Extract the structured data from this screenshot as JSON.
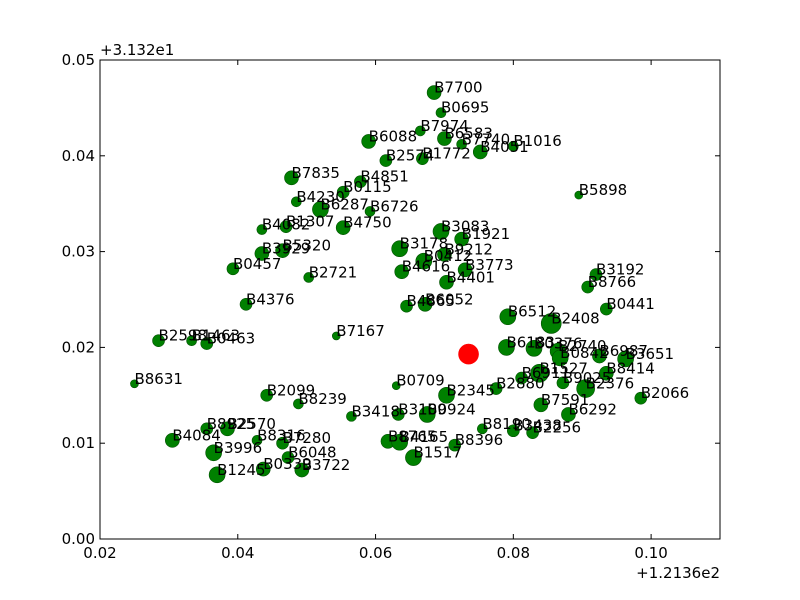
{
  "chart_data": {
    "type": "scatter",
    "title": "",
    "xlabel": "",
    "ylabel": "",
    "x_offset_label": "+1.2136e2",
    "y_offset_label": "+3.132e1",
    "xlim": [
      0.02,
      0.11
    ],
    "ylim": [
      0.0,
      0.05
    ],
    "x_ticks": [
      0.02,
      0.04,
      0.06,
      0.08,
      0.1
    ],
    "x_tick_labels": [
      "0.02",
      "0.04",
      "0.06",
      "0.08",
      "0.10"
    ],
    "y_ticks": [
      0.0,
      0.01,
      0.02,
      0.03,
      0.04,
      0.05
    ],
    "y_tick_labels": [
      "0.00",
      "0.01",
      "0.02",
      "0.03",
      "0.04",
      "0.05"
    ],
    "grid": false,
    "colors": {
      "point": "#008000",
      "point_edge": "#005000",
      "highlight": "#ff0000"
    },
    "highlight_point": {
      "x": 0.0735,
      "y": 0.0193,
      "size": 10
    },
    "points": [
      {
        "label": "B7700",
        "x": 0.0685,
        "y": 0.0466,
        "size": 7
      },
      {
        "label": "B0695",
        "x": 0.0695,
        "y": 0.0445,
        "size": 5
      },
      {
        "label": "B7974",
        "x": 0.0665,
        "y": 0.0426,
        "size": 5
      },
      {
        "label": "B6583",
        "x": 0.07,
        "y": 0.0418,
        "size": 7
      },
      {
        "label": "B7740",
        "x": 0.0725,
        "y": 0.0412,
        "size": 5
      },
      {
        "label": "B1016",
        "x": 0.08,
        "y": 0.041,
        "size": 5
      },
      {
        "label": "B4051",
        "x": 0.0752,
        "y": 0.0404,
        "size": 7
      },
      {
        "label": "B6088",
        "x": 0.059,
        "y": 0.0415,
        "size": 7
      },
      {
        "label": "B2574",
        "x": 0.0615,
        "y": 0.0395,
        "size": 6
      },
      {
        "label": "B1772",
        "x": 0.0668,
        "y": 0.0397,
        "size": 6
      },
      {
        "label": "B5898",
        "x": 0.0895,
        "y": 0.0359,
        "size": 4
      },
      {
        "label": "B7835",
        "x": 0.0478,
        "y": 0.0377,
        "size": 7
      },
      {
        "label": "B4851",
        "x": 0.0578,
        "y": 0.0373,
        "size": 6
      },
      {
        "label": "B0115",
        "x": 0.0553,
        "y": 0.0362,
        "size": 6
      },
      {
        "label": "B4230",
        "x": 0.0485,
        "y": 0.0352,
        "size": 5
      },
      {
        "label": "B6287",
        "x": 0.052,
        "y": 0.0344,
        "size": 8
      },
      {
        "label": "B6726",
        "x": 0.0592,
        "y": 0.0342,
        "size": 5
      },
      {
        "label": "B4082",
        "x": 0.0435,
        "y": 0.0323,
        "size": 5
      },
      {
        "label": "B1307",
        "x": 0.047,
        "y": 0.0326,
        "size": 6
      },
      {
        "label": "B4750",
        "x": 0.0553,
        "y": 0.0325,
        "size": 7
      },
      {
        "label": "B3083",
        "x": 0.0695,
        "y": 0.0321,
        "size": 8
      },
      {
        "label": "B1921",
        "x": 0.0725,
        "y": 0.0313,
        "size": 7
      },
      {
        "label": "B3178",
        "x": 0.0635,
        "y": 0.0303,
        "size": 8
      },
      {
        "label": "B9212",
        "x": 0.07,
        "y": 0.0297,
        "size": 7
      },
      {
        "label": "B0412",
        "x": 0.067,
        "y": 0.029,
        "size": 8
      },
      {
        "label": "B3773",
        "x": 0.073,
        "y": 0.0281,
        "size": 7
      },
      {
        "label": "B3929",
        "x": 0.0435,
        "y": 0.0298,
        "size": 7
      },
      {
        "label": "B5320",
        "x": 0.0465,
        "y": 0.0301,
        "size": 7
      },
      {
        "label": "B0457",
        "x": 0.0393,
        "y": 0.0282,
        "size": 6
      },
      {
        "label": "B2721",
        "x": 0.0503,
        "y": 0.0273,
        "size": 5
      },
      {
        "label": "B4616",
        "x": 0.0638,
        "y": 0.0279,
        "size": 7
      },
      {
        "label": "B4401",
        "x": 0.0703,
        "y": 0.0268,
        "size": 7
      },
      {
        "label": "B3192",
        "x": 0.092,
        "y": 0.0276,
        "size": 6
      },
      {
        "label": "B8766",
        "x": 0.0908,
        "y": 0.0263,
        "size": 6
      },
      {
        "label": "B4376",
        "x": 0.0412,
        "y": 0.0245,
        "size": 6
      },
      {
        "label": "B4865",
        "x": 0.0645,
        "y": 0.0243,
        "size": 6
      },
      {
        "label": "B6052",
        "x": 0.0672,
        "y": 0.0245,
        "size": 7
      },
      {
        "label": "B0441",
        "x": 0.0935,
        "y": 0.024,
        "size": 6
      },
      {
        "label": "B6512",
        "x": 0.0792,
        "y": 0.0232,
        "size": 8
      },
      {
        "label": "B2408",
        "x": 0.0855,
        "y": 0.0225,
        "size": 10
      },
      {
        "label": "B7167",
        "x": 0.0543,
        "y": 0.0212,
        "size": 4
      },
      {
        "label": "B2598",
        "x": 0.0285,
        "y": 0.0207,
        "size": 6
      },
      {
        "label": "B1463",
        "x": 0.0333,
        "y": 0.0207,
        "size": 5
      },
      {
        "label": "B0463",
        "x": 0.0355,
        "y": 0.0204,
        "size": 6
      },
      {
        "label": "B6183",
        "x": 0.079,
        "y": 0.02,
        "size": 8
      },
      {
        "label": "B0376",
        "x": 0.083,
        "y": 0.0199,
        "size": 8
      },
      {
        "label": "B2740",
        "x": 0.0865,
        "y": 0.0196,
        "size": 8
      },
      {
        "label": "B0842",
        "x": 0.0868,
        "y": 0.0189,
        "size": 8
      },
      {
        "label": "B6987",
        "x": 0.0925,
        "y": 0.0191,
        "size": 7
      },
      {
        "label": "B3651",
        "x": 0.0963,
        "y": 0.0188,
        "size": 8
      },
      {
        "label": "B8631",
        "x": 0.025,
        "y": 0.0162,
        "size": 4
      },
      {
        "label": "B1527",
        "x": 0.0838,
        "y": 0.0173,
        "size": 9
      },
      {
        "label": "B8414",
        "x": 0.0935,
        "y": 0.0173,
        "size": 7
      },
      {
        "label": "B0709",
        "x": 0.063,
        "y": 0.016,
        "size": 4
      },
      {
        "label": "B6911",
        "x": 0.0812,
        "y": 0.0168,
        "size": 6
      },
      {
        "label": "B9025",
        "x": 0.0872,
        "y": 0.0163,
        "size": 6
      },
      {
        "label": "B2376",
        "x": 0.0905,
        "y": 0.0157,
        "size": 9
      },
      {
        "label": "B2880",
        "x": 0.0775,
        "y": 0.0157,
        "size": 6
      },
      {
        "label": "B2345",
        "x": 0.0703,
        "y": 0.015,
        "size": 8
      },
      {
        "label": "B2099",
        "x": 0.0442,
        "y": 0.015,
        "size": 6
      },
      {
        "label": "B2066",
        "x": 0.0985,
        "y": 0.0147,
        "size": 6
      },
      {
        "label": "B8239",
        "x": 0.0488,
        "y": 0.0141,
        "size": 5
      },
      {
        "label": "B7591",
        "x": 0.084,
        "y": 0.014,
        "size": 7
      },
      {
        "label": "B6292",
        "x": 0.088,
        "y": 0.013,
        "size": 7
      },
      {
        "label": "B3418",
        "x": 0.0565,
        "y": 0.0128,
        "size": 5
      },
      {
        "label": "B3109",
        "x": 0.0633,
        "y": 0.013,
        "size": 6
      },
      {
        "label": "B0924",
        "x": 0.0675,
        "y": 0.013,
        "size": 8
      },
      {
        "label": "B8190",
        "x": 0.0755,
        "y": 0.0115,
        "size": 5
      },
      {
        "label": "B3438",
        "x": 0.08,
        "y": 0.0113,
        "size": 6
      },
      {
        "label": "B2256",
        "x": 0.0828,
        "y": 0.0111,
        "size": 6
      },
      {
        "label": "B8925",
        "x": 0.0355,
        "y": 0.0115,
        "size": 6
      },
      {
        "label": "B2570",
        "x": 0.0385,
        "y": 0.0115,
        "size": 7
      },
      {
        "label": "B4084",
        "x": 0.0305,
        "y": 0.0103,
        "size": 7
      },
      {
        "label": "B8316",
        "x": 0.0428,
        "y": 0.0103,
        "size": 5
      },
      {
        "label": "B7280",
        "x": 0.0465,
        "y": 0.01,
        "size": 6
      },
      {
        "label": "B8765",
        "x": 0.0618,
        "y": 0.0102,
        "size": 7
      },
      {
        "label": "B4165",
        "x": 0.0635,
        "y": 0.0101,
        "size": 8
      },
      {
        "label": "B8396",
        "x": 0.0715,
        "y": 0.0098,
        "size": 6
      },
      {
        "label": "B3996",
        "x": 0.0365,
        "y": 0.009,
        "size": 8
      },
      {
        "label": "B6048",
        "x": 0.0473,
        "y": 0.0085,
        "size": 6
      },
      {
        "label": "B1517",
        "x": 0.0655,
        "y": 0.0085,
        "size": 8
      },
      {
        "label": "B0339",
        "x": 0.0437,
        "y": 0.0073,
        "size": 7
      },
      {
        "label": "B3722",
        "x": 0.0493,
        "y": 0.0072,
        "size": 7
      },
      {
        "label": "B1245",
        "x": 0.037,
        "y": 0.0067,
        "size": 8
      }
    ]
  }
}
